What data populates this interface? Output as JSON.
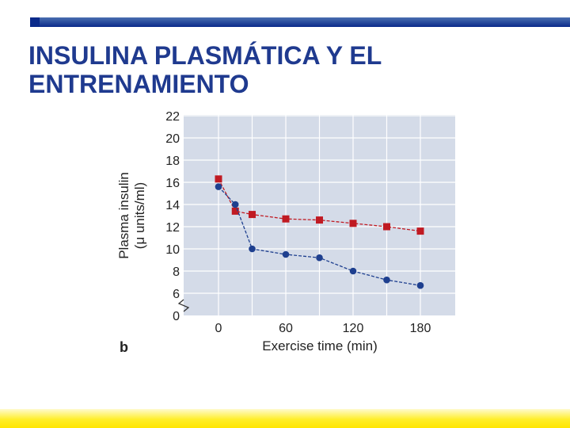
{
  "slide": {
    "title_line1": "INSULINA PLASMÁTICA Y EL",
    "title_line2": "ENTRENAMIENTO",
    "title_color": "#1f3a8f",
    "band_color": "#ffe600"
  },
  "chart_data": {
    "type": "line",
    "panel_label": "b",
    "xlabel": "Exercise time (min)",
    "ylabel_line1": "Plasma insulin",
    "ylabel_line2": "(μ units/ml)",
    "x_ticks": [
      0,
      60,
      120,
      180
    ],
    "y_ticks": [
      0,
      6,
      8,
      10,
      12,
      14,
      16,
      18,
      20,
      22
    ],
    "ylim": [
      0,
      22
    ],
    "axis_break": true,
    "grid": true,
    "plot_background": "#d4dbe8",
    "series": [
      {
        "marker": "square",
        "color": "#c01a22",
        "x": [
          0,
          15,
          30,
          60,
          90,
          120,
          150,
          180
        ],
        "y": [
          16.3,
          13.4,
          13.1,
          12.7,
          12.6,
          12.3,
          12.0,
          11.6
        ]
      },
      {
        "marker": "circle",
        "color": "#1e3f8f",
        "x": [
          0,
          15,
          30,
          60,
          90,
          120,
          150,
          180
        ],
        "y": [
          15.6,
          14.0,
          10.0,
          9.5,
          9.2,
          8.0,
          7.2,
          6.7
        ]
      }
    ]
  }
}
